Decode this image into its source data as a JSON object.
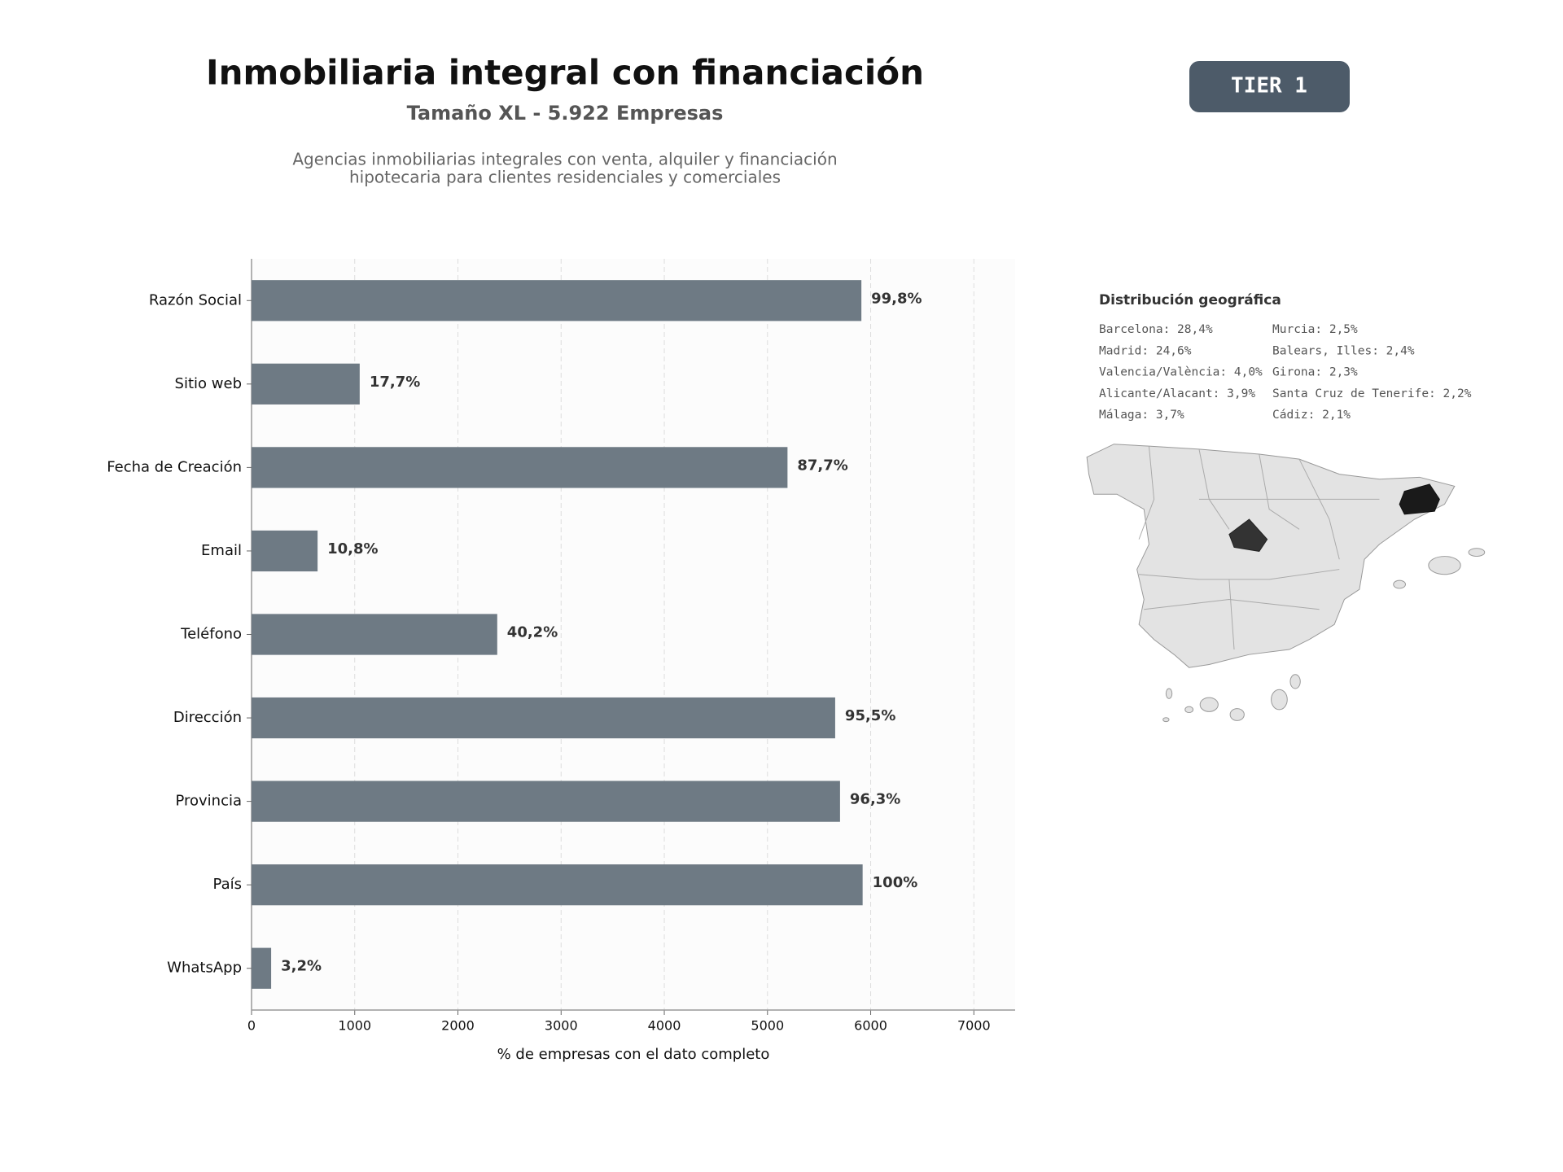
{
  "header": {
    "title": "Inmobiliaria integral con financiación",
    "subtitle": "Tamaño XL - 5.922 Empresas",
    "description": [
      "Agencias inmobiliarias integrales con venta, alquiler y financiación",
      "hipotecaria para clientes residenciales y comerciales"
    ]
  },
  "badge": "TIER 1",
  "chart_data": {
    "type": "barh",
    "categories": [
      "Razón Social",
      "Sitio web",
      "Fecha de Creación",
      "Email",
      "Teléfono",
      "Dirección",
      "Provincia",
      "País",
      "WhatsApp"
    ],
    "values": [
      5910,
      1048,
      5194,
      640,
      2381,
      5656,
      5703,
      5922,
      190
    ],
    "value_labels": [
      "99,8%",
      "17,7%",
      "87,7%",
      "10,8%",
      "40,2%",
      "95,5%",
      "96,3%",
      "100%",
      "3,2%"
    ],
    "color": "#6e7a84",
    "xlabel": "% de empresas con el dato completo",
    "xlim": [
      0,
      7400
    ],
    "xticks": [
      0,
      1000,
      2000,
      3000,
      4000,
      5000,
      6000,
      7000
    ],
    "grid": true
  },
  "geo": {
    "title": "Distribución geográfica",
    "entries": [
      "Barcelona: 28,4%",
      "Madrid: 24,6%",
      "Valencia/València: 4,0%",
      "Alicante/Alacant: 3,9%",
      "Málaga: 3,7%",
      "Murcia: 2,5%",
      "Balears, Illes: 2,4%",
      "Girona: 2,3%",
      "Santa Cruz de Tenerife: 2,2%",
      "Cádiz: 2,1%"
    ]
  }
}
